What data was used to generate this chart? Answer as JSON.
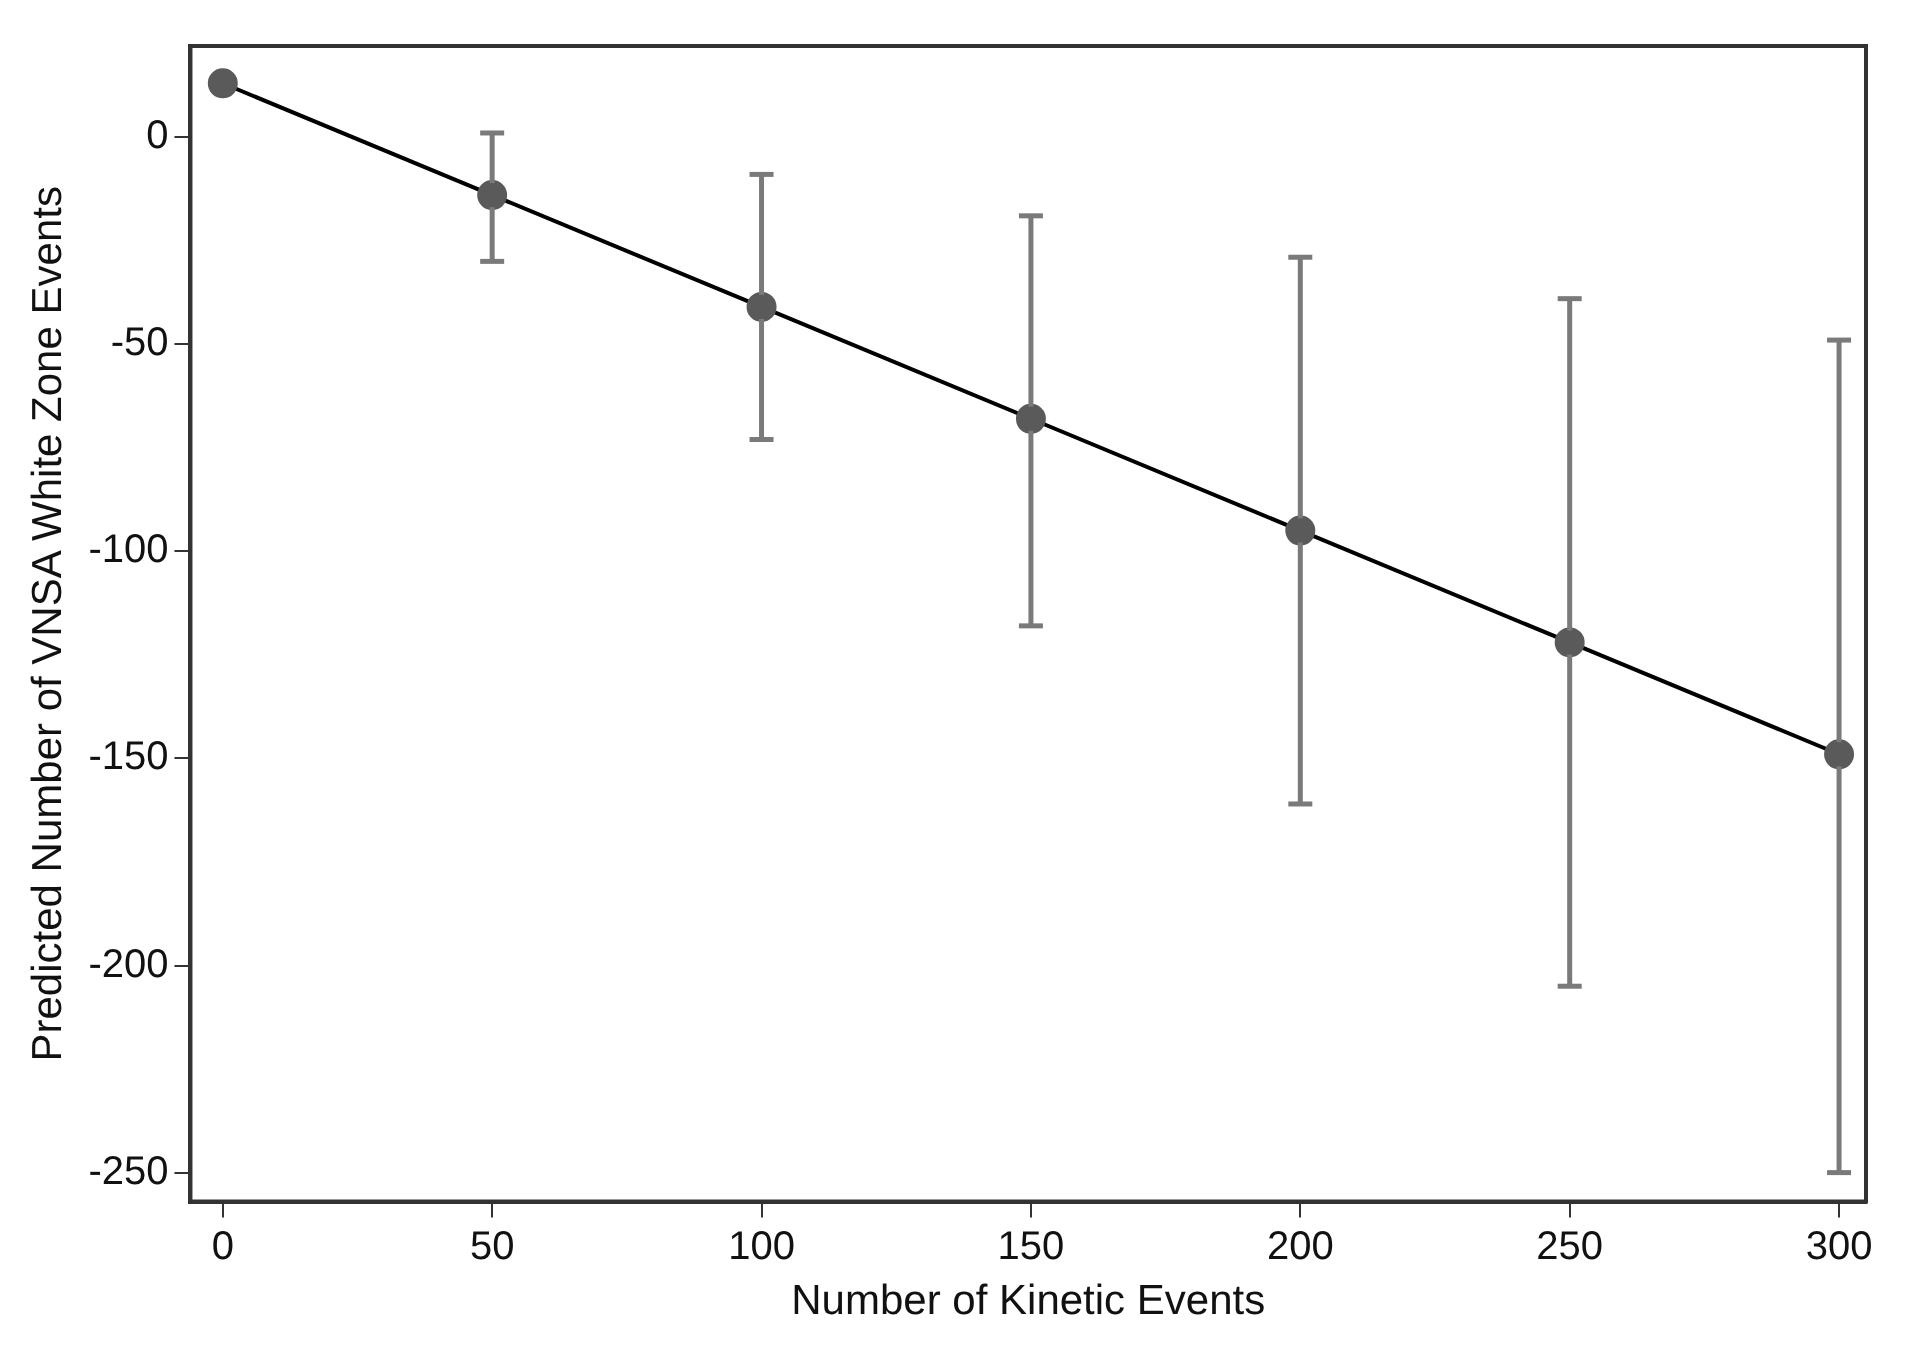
{
  "chart_data": {
    "type": "line",
    "xlabel": "Number of Kinetic Events",
    "ylabel": "Predicted Number of VNSA White Zone Events",
    "x": [
      0,
      50,
      100,
      150,
      200,
      250,
      300
    ],
    "series": [
      {
        "color": "#000000",
        "marker": "none",
        "values": [
          13,
          -14,
          -41,
          -68,
          -95,
          -122,
          -149
        ]
      },
      {
        "type": "scatter",
        "color": "#5a5a5a",
        "marker": "circle",
        "values": [
          13,
          -14,
          -41,
          -68,
          -95,
          -122,
          -149
        ],
        "errors": [
          null,
          [
            -30,
            1
          ],
          [
            -73,
            -9
          ],
          [
            -118,
            -19
          ],
          [
            -161,
            -29
          ],
          [
            -205,
            -39
          ],
          [
            -250,
            -49
          ]
        ]
      }
    ],
    "xlim": [
      -6,
      305
    ],
    "xticks": [
      0,
      50,
      100,
      150,
      200,
      250,
      300
    ],
    "ylim": [
      -257,
      22
    ],
    "yticks": [
      0,
      -50,
      -100,
      -150,
      -200,
      -250
    ],
    "grid": false,
    "legend": false
  }
}
